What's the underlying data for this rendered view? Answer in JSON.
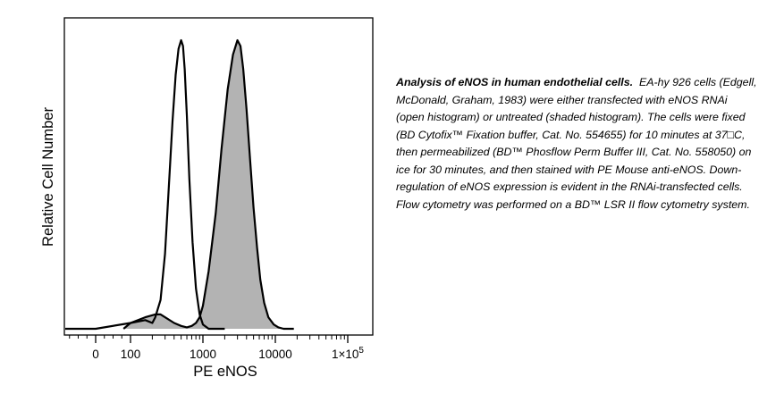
{
  "chart_data": {
    "type": "area",
    "scale_note": "x axis is logicle/biexponential (linear near 0, log above ~100)",
    "xlabel": "PE eNOS",
    "ylabel": "Relative Cell Number",
    "x_ticks": [
      {
        "value": 0,
        "label": "0"
      },
      {
        "value": 100,
        "label": "100"
      },
      {
        "value": 1000,
        "label": "1000"
      },
      {
        "value": 10000,
        "label": "10000"
      },
      {
        "value": 100000,
        "label": "1×10",
        "sup": "5"
      }
    ],
    "y_range": [
      0,
      1
    ],
    "series": [
      {
        "label": "eNOS RNAi (open histogram)",
        "fill": "none",
        "stroke": "#000000",
        "x": [
          -150,
          0,
          100,
          160,
          200,
          220,
          260,
          300,
          340,
          380,
          420,
          460,
          500,
          530,
          560,
          600,
          650,
          720,
          800,
          900,
          1000,
          1200,
          2000
        ],
        "y": [
          0,
          0,
          0.02,
          0.03,
          0.02,
          0.04,
          0.1,
          0.26,
          0.5,
          0.72,
          0.88,
          0.97,
          1.0,
          0.98,
          0.9,
          0.74,
          0.52,
          0.3,
          0.14,
          0.05,
          0.015,
          0,
          0
        ]
      },
      {
        "label": "untreated (shaded histogram)",
        "fill": "#b3b3b3",
        "stroke": "#000000",
        "x": [
          80,
          100,
          160,
          220,
          260,
          300,
          400,
          500,
          600,
          700,
          800,
          900,
          1000,
          1200,
          1500,
          1800,
          2200,
          2600,
          3000,
          3300,
          3600,
          4000,
          4500,
          5000,
          5600,
          6200,
          7000,
          8000,
          9500,
          11000,
          13000,
          18000
        ],
        "y": [
          0,
          0.02,
          0.04,
          0.05,
          0.05,
          0.04,
          0.02,
          0.01,
          0.005,
          0.01,
          0.02,
          0.04,
          0.08,
          0.2,
          0.4,
          0.62,
          0.83,
          0.95,
          1.0,
          0.98,
          0.9,
          0.76,
          0.58,
          0.42,
          0.28,
          0.17,
          0.09,
          0.04,
          0.015,
          0.005,
          0,
          0
        ]
      }
    ]
  },
  "caption": {
    "lead": "Analysis of eNOS in human endothelial cells.",
    "body": "EA-hy 926 cells (Edgell, McDonald, Graham, 1983) were either transfected with eNOS RNAi (open histogram) or untreated (shaded histogram).  The cells were fixed (BD Cytofix™ Fixation buffer, Cat. No. 554655) for 10 minutes at 37□C, then permeabilized (BD™ Phosflow Perm Buffer III, Cat. No. 558050) on ice for 30 minutes, and then stained with PE Mouse anti-eNOS.  Down-regulation of eNOS expression is evident in the RNAi-transfected cells.  Flow cytometry was performed on a BD™ LSR II flow cytometry system."
  }
}
